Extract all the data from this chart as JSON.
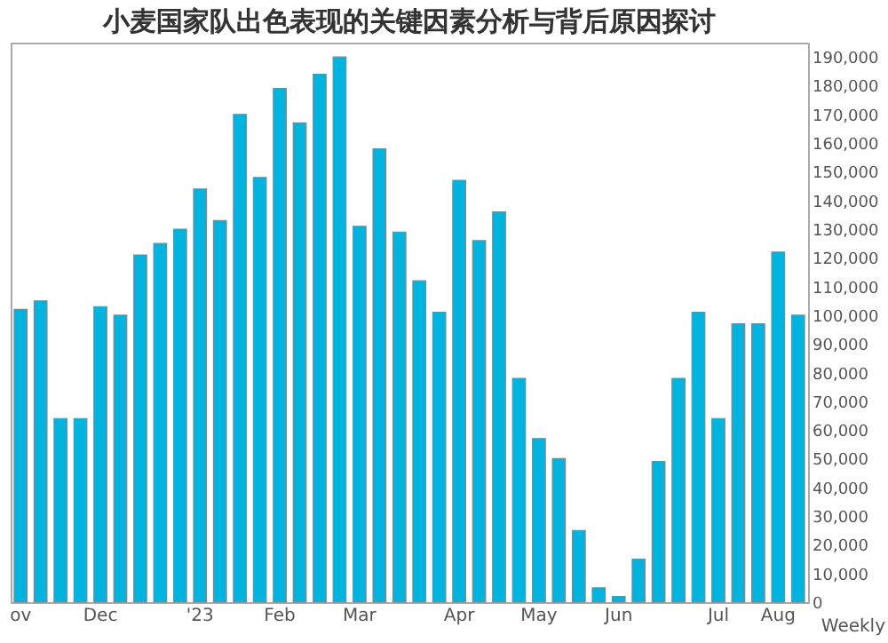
{
  "chart_data": {
    "type": "bar",
    "title": "小麦国家队出色表现的关键因素分析与背后原因探讨",
    "xlabel": "Weekly",
    "categories": [
      "ov",
      null,
      null,
      null,
      "Dec",
      null,
      null,
      null,
      null,
      "'23",
      null,
      null,
      null,
      "Feb",
      null,
      null,
      null,
      "Mar",
      null,
      null,
      null,
      null,
      "Apr",
      null,
      null,
      null,
      "May",
      null,
      null,
      null,
      "Jun",
      null,
      null,
      null,
      null,
      "Jul",
      null,
      null,
      "Aug",
      null
    ],
    "values": [
      102000,
      105000,
      64000,
      64000,
      103000,
      100000,
      121000,
      125000,
      130000,
      144000,
      133000,
      170000,
      148000,
      179000,
      167000,
      184000,
      190000,
      131000,
      158000,
      129000,
      112000,
      101000,
      147000,
      126000,
      136000,
      78000,
      57000,
      50000,
      25000,
      5000,
      2000,
      15000,
      49000,
      78000,
      101000,
      64000,
      97000,
      97000,
      122000,
      100000
    ],
    "color": "#00b4e0",
    "ylim": [
      0,
      195000
    ],
    "yticks": [
      0,
      {
        "value": 10000,
        "label": "10,000"
      },
      {
        "value": 20000,
        "label": "20,000"
      },
      {
        "value": 30000,
        "label": "30,000"
      },
      {
        "value": 40000,
        "label": "40,000"
      },
      {
        "value": 50000,
        "label": "50,000"
      },
      {
        "value": 60000,
        "label": "60,000"
      },
      {
        "value": 70000,
        "label": "70,000"
      },
      {
        "value": 80000,
        "label": "80,000"
      },
      {
        "value": 90000,
        "label": "90,000"
      },
      {
        "value": 100000,
        "label": "100,000"
      },
      {
        "value": 110000,
        "label": "110,000"
      },
      {
        "value": 120000,
        "label": "120,000"
      },
      {
        "value": 130000,
        "label": "130,000"
      },
      {
        "value": 140000,
        "label": "140,000"
      },
      {
        "value": 150000,
        "label": "150,000"
      },
      {
        "value": 160000,
        "label": "160,000"
      },
      {
        "value": 170000,
        "label": "170,000"
      },
      {
        "value": 180000,
        "label": "180,000"
      },
      {
        "value": 190000,
        "label": "190,000"
      }
    ],
    "grid": false
  }
}
